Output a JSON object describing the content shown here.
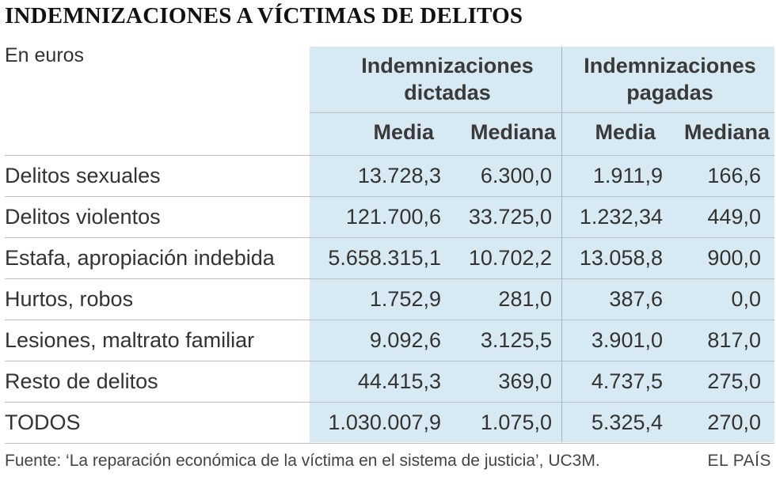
{
  "title": "INDEMNIZACIONES A VÍCTIMAS DE DELITOS",
  "unit_label": "En euros",
  "source": "Fuente: ‘La reparación económica de la víctima en el sistema de justicia’, UC3M.",
  "credit": "EL PAÍS",
  "colors": {
    "shade": "#d7e9f2",
    "text": "#333333",
    "rule": "#b9c0c4"
  },
  "chart_data": {
    "type": "table",
    "title": "INDEMNIZACIONES A VÍCTIMAS DE DELITOS",
    "unit": "En euros",
    "groups": [
      {
        "label_line1": "Indemnizaciones",
        "label_line2": "dictadas",
        "columns": [
          "Media",
          "Mediana"
        ]
      },
      {
        "label_line1": "Indemnizaciones",
        "label_line2": "pagadas",
        "columns": [
          "Media",
          "Mediana"
        ]
      }
    ],
    "rows": [
      {
        "label": "Delitos sexuales",
        "values": [
          "13.728,3",
          "6.300,0",
          "1.911,9",
          "166,6"
        ]
      },
      {
        "label": "Delitos violentos",
        "values": [
          "121.700,6",
          "33.725,0",
          "1.232,34",
          "449,0"
        ]
      },
      {
        "label": "Estafa, apropiación indebida",
        "values": [
          "5.658.315,1",
          "10.702,2",
          "13.058,8",
          "900,0"
        ]
      },
      {
        "label": "Hurtos, robos",
        "values": [
          "1.752,9",
          "281,0",
          "387,6",
          "0,0"
        ]
      },
      {
        "label": "Lesiones, maltrato familiar",
        "values": [
          "9.092,6",
          "3.125,5",
          "3.901,0",
          "817,0"
        ]
      },
      {
        "label": "Resto de delitos",
        "values": [
          "44.415,3",
          "369,0",
          "4.737,5",
          "275,0"
        ]
      },
      {
        "label": "TODOS",
        "values": [
          "1.030.007,9",
          "1.075,0",
          "5.325,4",
          "270,0"
        ]
      }
    ]
  }
}
